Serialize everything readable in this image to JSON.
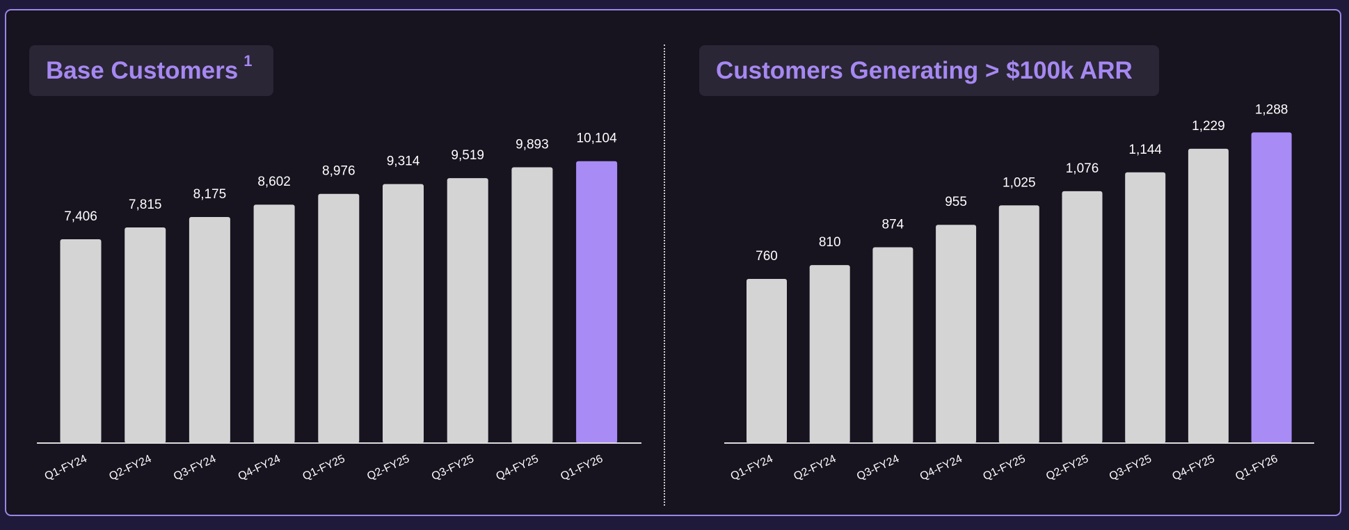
{
  "colors": {
    "bar": "#d4d4d4",
    "highlight": "#a88bf5",
    "title": "#a688f2",
    "text": "#ffffff",
    "axis": "#dcdcdc"
  },
  "chart_data": [
    {
      "type": "bar",
      "title": "Base Customers",
      "title_footnote": "1",
      "categories": [
        "Q1-FY24",
        "Q2-FY24",
        "Q3-FY24",
        "Q4-FY24",
        "Q1-FY25",
        "Q2-FY25",
        "Q3-FY25",
        "Q4-FY25",
        "Q1-FY26"
      ],
      "values": [
        7406,
        7815,
        8175,
        8602,
        8976,
        9314,
        9519,
        9893,
        10104
      ],
      "value_labels": [
        "7,406",
        "7,815",
        "8,175",
        "8,602",
        "8,976",
        "9,314",
        "9,519",
        "9,893",
        "10,104"
      ],
      "highlight_index": 8,
      "xlabel": "",
      "ylabel": "",
      "grid": false,
      "legend": "none"
    },
    {
      "type": "bar",
      "title": "Customers Generating > $100k ARR",
      "categories": [
        "Q1-FY24",
        "Q2-FY24",
        "Q3-FY24",
        "Q4-FY24",
        "Q1-FY25",
        "Q2-FY25",
        "Q3-FY25",
        "Q4-FY25",
        "Q1-FY26"
      ],
      "values": [
        760,
        810,
        874,
        955,
        1025,
        1076,
        1144,
        1229,
        1288
      ],
      "value_labels": [
        "760",
        "810",
        "874",
        "955",
        "1,025",
        "1,076",
        "1,144",
        "1,229",
        "1,288"
      ],
      "highlight_index": 8,
      "xlabel": "",
      "ylabel": "",
      "grid": false,
      "legend": "none"
    }
  ]
}
